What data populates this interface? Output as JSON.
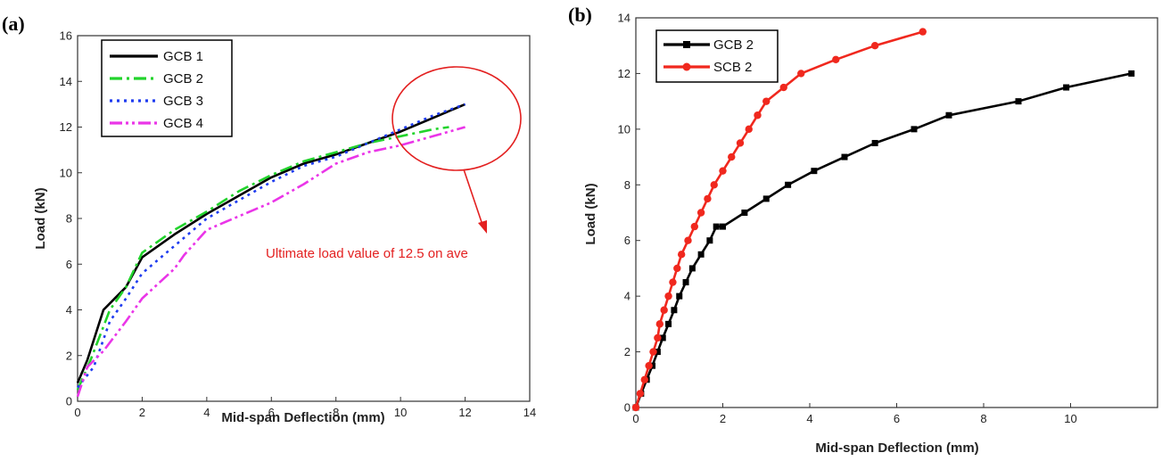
{
  "chart_data": [
    {
      "panel": "(a)",
      "type": "line",
      "xlabel": "Mid-span Deflection (mm)",
      "ylabel": "Load (kN)",
      "xlim": [
        0,
        14
      ],
      "ylim": [
        0,
        16
      ],
      "xticks": [
        0,
        2,
        4,
        6,
        8,
        10,
        12,
        14
      ],
      "yticks": [
        0,
        2,
        4,
        6,
        8,
        10,
        12,
        14,
        16
      ],
      "legend_position": "top-left",
      "series": [
        {
          "name": "GCB 1",
          "color": "#000000",
          "dash": "solid",
          "x": [
            0,
            0.3,
            0.8,
            1.5,
            2.0,
            3.0,
            4.0,
            5.0,
            6.0,
            7.0,
            8.0,
            9.0,
            10.0,
            11.0,
            12.0
          ],
          "y": [
            0.8,
            1.8,
            4.0,
            5.0,
            6.3,
            7.3,
            8.2,
            9.0,
            9.8,
            10.4,
            10.8,
            11.3,
            11.8,
            12.4,
            13.0
          ]
        },
        {
          "name": "GCB 2",
          "color": "#22d32c",
          "dash": "dashdot",
          "x": [
            0,
            0.4,
            1.0,
            1.5,
            2.0,
            3.0,
            4.0,
            5.0,
            6.0,
            7.0,
            8.0,
            9.0,
            10.0,
            11.0,
            11.5
          ],
          "y": [
            0.5,
            1.8,
            4.0,
            5.0,
            6.5,
            7.5,
            8.3,
            9.2,
            9.9,
            10.5,
            10.9,
            11.3,
            11.6,
            11.9,
            12.0
          ]
        },
        {
          "name": "GCB 3",
          "color": "#1f3cf0",
          "dash": "dot",
          "x": [
            0,
            0.5,
            1.0,
            1.5,
            2.0,
            3.0,
            4.0,
            5.0,
            6.0,
            7.0,
            8.0,
            9.0,
            10.0,
            11.0,
            12.0
          ],
          "y": [
            0.6,
            1.5,
            3.5,
            4.5,
            5.6,
            6.8,
            8.0,
            8.8,
            9.6,
            10.3,
            10.7,
            11.3,
            11.9,
            12.5,
            13.0
          ]
        },
        {
          "name": "GCB 4",
          "color": "#ea35e8",
          "dash": "dashdotdot",
          "x": [
            0,
            0.3,
            0.8,
            1.5,
            2.0,
            3.0,
            3.3,
            4.0,
            5.0,
            6.0,
            7.0,
            8.0,
            9.0,
            10.0,
            11.0,
            12.0
          ],
          "y": [
            0.2,
            1.5,
            2.2,
            3.5,
            4.5,
            5.8,
            6.4,
            7.5,
            8.1,
            8.7,
            9.5,
            10.4,
            10.9,
            11.2,
            11.6,
            12.0
          ]
        }
      ],
      "annotation": {
        "text": "Ultimate load value of 12.5 on ave",
        "color": "#e32020"
      }
    },
    {
      "panel": "(b)",
      "type": "line",
      "xlabel": "Mid-span Deflection (mm)",
      "ylabel": "Load (kN)",
      "xlim": [
        0,
        12
      ],
      "ylim": [
        0,
        14
      ],
      "xticks": [
        0,
        2,
        4,
        6,
        8,
        10
      ],
      "yticks": [
        0,
        2,
        4,
        6,
        8,
        10,
        12,
        14
      ],
      "legend_position": "top-left",
      "series": [
        {
          "name": "GCB 2",
          "color": "#000000",
          "marker": "square",
          "x": [
            0,
            0.12,
            0.25,
            0.38,
            0.5,
            0.62,
            0.75,
            0.88,
            1.0,
            1.15,
            1.3,
            1.5,
            1.7,
            1.85,
            2.0,
            2.5,
            3.0,
            3.5,
            4.1,
            4.8,
            5.5,
            6.4,
            7.2,
            8.8,
            9.9,
            11.4
          ],
          "y": [
            0,
            0.5,
            1.0,
            1.5,
            2.0,
            2.5,
            3.0,
            3.5,
            4.0,
            4.5,
            5.0,
            5.5,
            6.0,
            6.5,
            6.5,
            7.0,
            7.5,
            8.0,
            8.5,
            9.0,
            9.5,
            10.0,
            10.5,
            11.0,
            11.5,
            12.0
          ]
        },
        {
          "name": "SCB 2",
          "color": "#f0281e",
          "marker": "circle",
          "x": [
            0,
            0.1,
            0.2,
            0.3,
            0.4,
            0.5,
            0.55,
            0.65,
            0.75,
            0.85,
            0.95,
            1.05,
            1.2,
            1.35,
            1.5,
            1.65,
            1.8,
            2.0,
            2.2,
            2.4,
            2.6,
            2.8,
            3.0,
            3.4,
            3.8,
            4.6,
            5.5,
            6.6
          ],
          "y": [
            0,
            0.5,
            1.0,
            1.5,
            2.0,
            2.5,
            3.0,
            3.5,
            4.0,
            4.5,
            5.0,
            5.5,
            6.0,
            6.5,
            7.0,
            7.5,
            8.0,
            8.5,
            9.0,
            9.5,
            10.0,
            10.5,
            11.0,
            11.5,
            12.0,
            12.5,
            13.0,
            13.5
          ]
        }
      ]
    }
  ]
}
